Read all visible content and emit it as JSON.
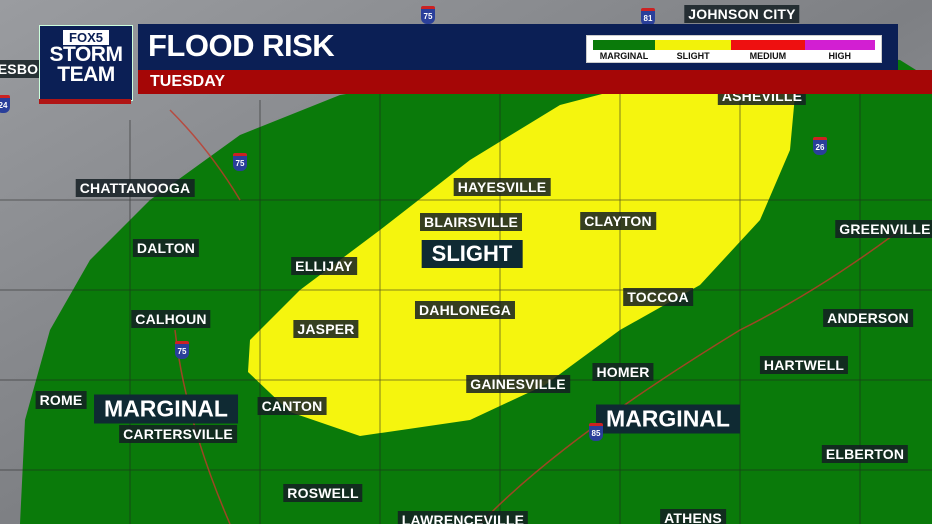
{
  "header": {
    "logo": {
      "brand": "FOX5",
      "line1": "STORM",
      "line2": "TEAM"
    },
    "title": "FLOOD RISK",
    "day": "TUESDAY"
  },
  "legend": [
    {
      "label": "MARGINAL",
      "color": "#0a7a0a"
    },
    {
      "label": "SLIGHT",
      "color": "#f2f20a"
    },
    {
      "label": "MEDIUM",
      "color": "#ee1010"
    },
    {
      "label": "HIGH",
      "color": "#d21fd2"
    }
  ],
  "colors": {
    "marginal": "#0a7a0a",
    "slight": "#f5f50e",
    "land": "#8a8c90"
  },
  "regions": {
    "slight": "SLIGHT",
    "marginal_west": "MARGINAL",
    "marginal_east": "MARGINAL"
  },
  "cities": [
    "JOHNSON CITY",
    "ASHEVILLE",
    "CHATTANOOGA",
    "HAYESVILLE",
    "BLAIRSVILLE",
    "CLAYTON",
    "GREENVILLE",
    "DALTON",
    "ELLIJAY",
    "TOCCOA",
    "CALHOUN",
    "JASPER",
    "DAHLONEGA",
    "ANDERSON",
    "HOMER",
    "HARTWELL",
    "GAINESVILLE",
    "ROME",
    "CANTON",
    "CARTERSVILLE",
    "ELBERTON",
    "ROSWELL",
    "LAWRENCEVILLE",
    "ATHENS",
    "ESBO"
  ],
  "interstates": [
    "75",
    "81",
    "75",
    "26",
    "75",
    "85",
    "24"
  ]
}
